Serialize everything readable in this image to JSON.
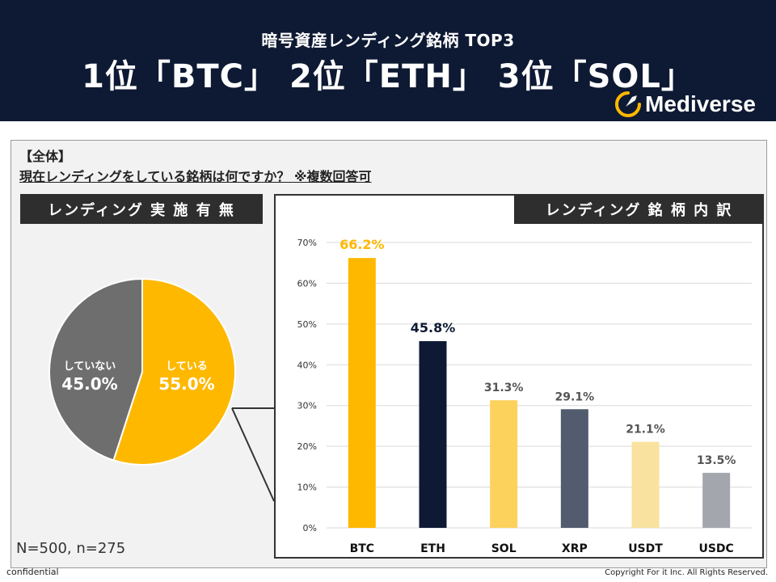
{
  "header": {
    "subtitle": "暗号資産レンディング銘柄 TOP3",
    "title": "1位「BTC」 2位「ETH」 3位「SOL」",
    "brand": "Mediverse",
    "bg_color": "#0e1a33"
  },
  "section": {
    "all_label": "【全体】",
    "question": "現在レンディングをしている銘柄は何ですか？ ※複数回答可",
    "left_label": "レンディング 実 施 有 無",
    "right_label": "レンディング 銘 柄 内 訳",
    "sample": "N=500, n=275"
  },
  "footer": {
    "confidential": "confidential",
    "copyright": "Copyright For it Inc. All Rights Reserved."
  },
  "chart_data": [
    {
      "type": "pie",
      "title": "レンディング 実施有無",
      "slices": [
        {
          "label": "している",
          "value": 55.0,
          "value_label": "55.0%",
          "color": "#ffb800"
        },
        {
          "label": "していない",
          "value": 45.0,
          "value_label": "45.0%",
          "color": "#6e6e6e"
        }
      ]
    },
    {
      "type": "bar",
      "title": "レンディング 銘柄内訳",
      "categories": [
        "BTC",
        "ETH",
        "SOL",
        "XRP",
        "USDT",
        "USDC"
      ],
      "values": [
        66.2,
        45.8,
        31.3,
        29.1,
        21.1,
        13.5
      ],
      "value_labels": [
        "66.2%",
        "45.8%",
        "31.3%",
        "29.1%",
        "21.1%",
        "13.5%"
      ],
      "colors": [
        "#ffb800",
        "#0e1a33",
        "#fcd25c",
        "#525c6e",
        "#f9e29f",
        "#a3a7ad"
      ],
      "label_colors": [
        "#ffb800",
        "#0e1a33",
        "#555555",
        "#555555",
        "#555555",
        "#555555"
      ],
      "ylim": [
        0,
        70
      ],
      "yticks": [
        "0%",
        "10%",
        "20%",
        "30%",
        "40%",
        "50%",
        "60%",
        "70%"
      ],
      "grid": true
    }
  ]
}
